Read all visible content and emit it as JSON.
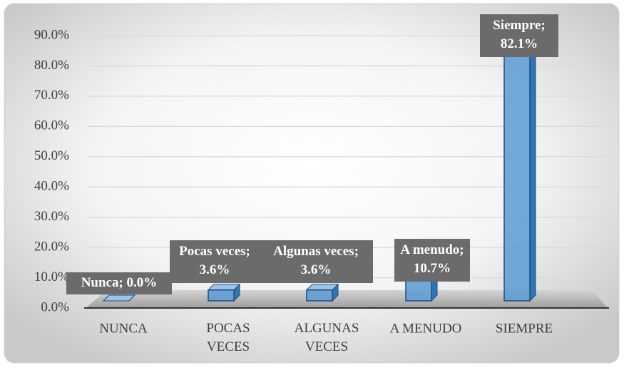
{
  "chart_data": {
    "type": "bar",
    "categories": [
      "NUNCA",
      "POCAS VECES",
      "ALGUNAS VECES",
      "A MENUDO",
      "SIEMPRE"
    ],
    "values": [
      0.0,
      3.6,
      3.6,
      10.7,
      82.1
    ],
    "value_labels": [
      "Nunca; 0.0%",
      "Pocas veces; 3.6%",
      "Algunas veces; 3.6%",
      "A menudo; 10.7%",
      "Siempre; 82.1%"
    ],
    "color": "#5b9bd5",
    "ylim": [
      0,
      90
    ],
    "yticks": [
      {
        "value": 0,
        "label": "0.0%"
      },
      {
        "value": 10,
        "label": "10.0%"
      },
      {
        "value": 20,
        "label": "20.0%"
      },
      {
        "value": 30,
        "label": "30.0%"
      },
      {
        "value": 40,
        "label": "40.0%"
      },
      {
        "value": 50,
        "label": "50.0%"
      },
      {
        "value": 60,
        "label": "60.0%"
      },
      {
        "value": 70,
        "label": "70.0%"
      },
      {
        "value": 80,
        "label": "80.0%"
      },
      {
        "value": 90,
        "label": "90.0%"
      }
    ],
    "grid": true
  }
}
